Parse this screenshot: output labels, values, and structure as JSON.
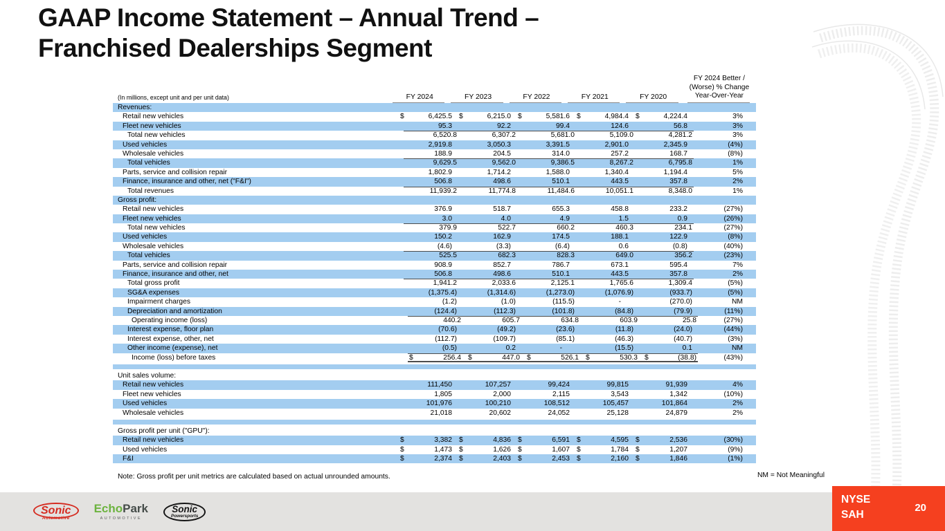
{
  "slide": {
    "title_line1": "GAAP Income Statement – Annual Trend –",
    "title_line2": "Franchised Dealerships Segment",
    "note": "Note: Gross profit per unit metrics are calculated based on actual unrounded amounts.",
    "nm_note": "NM = Not Meaningful",
    "ticker_line1": "NYSE",
    "ticker_line2": "SAH",
    "page_number": "20"
  },
  "colors": {
    "row_blue": "#a3cdf0",
    "ticker_red": "#f5401f",
    "sonic_red": "#d52b20",
    "echopark_green": "#6cb33f",
    "footer_gray": "#e3e2e0"
  },
  "table": {
    "units_note": "(In millions, except unit and per unit data)",
    "columns": [
      "FY 2024",
      "FY 2023",
      "FY 2022",
      "FY 2021",
      "FY 2020"
    ],
    "change_header": [
      "FY 2024 Better /",
      "(Worse) % Change",
      "Year-Over-Year"
    ],
    "rows": [
      {
        "type": "section",
        "shade": "b",
        "ind": 0,
        "label": "Revenues:"
      },
      {
        "type": "data",
        "shade": "w",
        "ind": 1,
        "label": "Retail new vehicles",
        "dollar": true,
        "v": [
          "6,425.5",
          "6,215.0",
          "5,581.6",
          "4,984.4",
          "4,224.4"
        ],
        "c": "3%"
      },
      {
        "type": "data",
        "shade": "b",
        "ind": 1,
        "label": "Fleet new vehicles",
        "v": [
          "95.3",
          "92.2",
          "99.4",
          "124.6",
          "56.8"
        ],
        "c": "3%"
      },
      {
        "type": "data",
        "shade": "w",
        "ind": 2,
        "label": "Total new vehicles",
        "v": [
          "6,520.8",
          "6,307.2",
          "5,681.0",
          "5,109.0",
          "4,281.2"
        ],
        "c": "3%",
        "top": true
      },
      {
        "type": "data",
        "shade": "b",
        "ind": 1,
        "label": "Used vehicles",
        "v": [
          "2,919.8",
          "3,050.3",
          "3,391.5",
          "2,901.0",
          "2,345.9"
        ],
        "c": "(4%)"
      },
      {
        "type": "data",
        "shade": "w",
        "ind": 1,
        "label": "Wholesale vehicles",
        "v": [
          "188.9",
          "204.5",
          "314.0",
          "257.2",
          "168.7"
        ],
        "c": "(8%)"
      },
      {
        "type": "data",
        "shade": "b",
        "ind": 2,
        "label": "Total vehicles",
        "v": [
          "9,629.5",
          "9,562.0",
          "9,386.5",
          "8,267.2",
          "6,795.8"
        ],
        "c": "1%",
        "top": true
      },
      {
        "type": "data",
        "shade": "w",
        "ind": 1,
        "label": "Parts, service and collision repair",
        "v": [
          "1,802.9",
          "1,714.2",
          "1,588.0",
          "1,340.4",
          "1,194.4"
        ],
        "c": "5%"
      },
      {
        "type": "data",
        "shade": "b",
        "ind": 1,
        "label": "Finance, insurance and other, net (\"F&I\")",
        "v": [
          "506.8",
          "498.6",
          "510.1",
          "443.5",
          "357.8"
        ],
        "c": "2%"
      },
      {
        "type": "data",
        "shade": "w",
        "ind": 2,
        "label": "Total revenues",
        "v": [
          "11,939.2",
          "11,774.8",
          "11,484.6",
          "10,051.1",
          "8,348.0"
        ],
        "c": "1%",
        "top": true
      },
      {
        "type": "section",
        "shade": "b",
        "ind": 0,
        "label": "Gross profit:"
      },
      {
        "type": "data",
        "shade": "w",
        "ind": 1,
        "label": "Retail new vehicles",
        "v": [
          "376.9",
          "518.7",
          "655.3",
          "458.8",
          "233.2"
        ],
        "c": "(27%)"
      },
      {
        "type": "data",
        "shade": "b",
        "ind": 1,
        "label": "Fleet new vehicles",
        "v": [
          "3.0",
          "4.0",
          "4.9",
          "1.5",
          "0.9"
        ],
        "c": "(26%)"
      },
      {
        "type": "data",
        "shade": "w",
        "ind": 2,
        "label": "Total new vehicles",
        "v": [
          "379.9",
          "522.7",
          "660.2",
          "460.3",
          "234.1"
        ],
        "c": "(27%)",
        "top": true
      },
      {
        "type": "data",
        "shade": "b",
        "ind": 1,
        "label": "Used vehicles",
        "v": [
          "150.2",
          "162.9",
          "174.5",
          "188.1",
          "122.9"
        ],
        "c": "(8%)"
      },
      {
        "type": "data",
        "shade": "w",
        "ind": 1,
        "label": "Wholesale vehicles",
        "v": [
          "(4.6)",
          "(3.3)",
          "(6.4)",
          "0.6",
          "(0.8)"
        ],
        "c": "(40%)"
      },
      {
        "type": "data",
        "shade": "b",
        "ind": 2,
        "label": "Total vehicles",
        "v": [
          "525.5",
          "682.3",
          "828.3",
          "649.0",
          "356.2"
        ],
        "c": "(23%)",
        "top": true
      },
      {
        "type": "data",
        "shade": "w",
        "ind": 1,
        "label": "Parts, service and collision repair",
        "v": [
          "908.9",
          "852.7",
          "786.7",
          "673.1",
          "595.4"
        ],
        "c": "7%"
      },
      {
        "type": "data",
        "shade": "b",
        "ind": 1,
        "label": "Finance, insurance and other, net",
        "v": [
          "506.8",
          "498.6",
          "510.1",
          "443.5",
          "357.8"
        ],
        "c": "2%"
      },
      {
        "type": "data",
        "shade": "w",
        "ind": 2,
        "label": "Total gross profit",
        "v": [
          "1,941.2",
          "2,033.6",
          "2,125.1",
          "1,765.6",
          "1,309.4"
        ],
        "c": "(5%)",
        "top": true
      },
      {
        "type": "data",
        "shade": "b",
        "ind": 2,
        "label": "SG&A expenses",
        "v": [
          "(1,375.4)",
          "(1,314.6)",
          "(1,273.0)",
          "(1,076.9)",
          "(933.7)"
        ],
        "c": "(5%)"
      },
      {
        "type": "data",
        "shade": "w",
        "ind": 2,
        "label": "Impairment charges",
        "v": [
          "(1.2)",
          "(1.0)",
          "(115.5)",
          "-",
          "(270.0)"
        ],
        "c": "NM"
      },
      {
        "type": "data",
        "shade": "b",
        "ind": 2,
        "label": "Depreciation and amortization",
        "v": [
          "(124.4)",
          "(112.3)",
          "(101.8)",
          "(84.8)",
          "(79.9)"
        ],
        "c": "(11%)"
      },
      {
        "type": "data",
        "shade": "w",
        "ind": 3,
        "label": "Operating income (loss)",
        "v": [
          "440.2",
          "605.7",
          "634.8",
          "603.9",
          "25.8"
        ],
        "c": "(27%)",
        "top": true
      },
      {
        "type": "data",
        "shade": "b",
        "ind": 2,
        "label": "Interest expense, floor plan",
        "v": [
          "(70.6)",
          "(49.2)",
          "(23.6)",
          "(11.8)",
          "(24.0)"
        ],
        "c": "(44%)"
      },
      {
        "type": "data",
        "shade": "w",
        "ind": 2,
        "label": "Interest expense, other, net",
        "v": [
          "(112.7)",
          "(109.7)",
          "(85.1)",
          "(46.3)",
          "(40.7)"
        ],
        "c": "(3%)"
      },
      {
        "type": "data",
        "shade": "b",
        "ind": 2,
        "label": "Other income (expense), net",
        "v": [
          "(0.5)",
          "0.2",
          "-",
          "(15.5)",
          "0.1"
        ],
        "c": "NM"
      },
      {
        "type": "data",
        "shade": "w",
        "ind": 3,
        "label": "Income (loss) before taxes",
        "dollar": true,
        "v": [
          "256.4",
          "447.0",
          "526.1",
          "530.3",
          "(38.8)"
        ],
        "c": "(43%)",
        "top": true,
        "bot": true
      },
      {
        "type": "blank",
        "shade": "b"
      },
      {
        "type": "section",
        "shade": "w",
        "ind": 0,
        "label": "Unit sales volume:"
      },
      {
        "type": "data",
        "shade": "b",
        "ind": 1,
        "label": "Retail new vehicles",
        "v": [
          "111,450",
          "107,257",
          "99,424",
          "99,815",
          "91,939"
        ],
        "c": "4%"
      },
      {
        "type": "data",
        "shade": "w",
        "ind": 1,
        "label": "Fleet new vehicles",
        "v": [
          "1,805",
          "2,000",
          "2,115",
          "3,543",
          "1,342"
        ],
        "c": "(10%)"
      },
      {
        "type": "data",
        "shade": "b",
        "ind": 1,
        "label": "Used vehicles",
        "v": [
          "101,976",
          "100,210",
          "108,512",
          "105,457",
          "101,864"
        ],
        "c": "2%"
      },
      {
        "type": "data",
        "shade": "w",
        "ind": 1,
        "label": "Wholesale vehicles",
        "v": [
          "21,018",
          "20,602",
          "24,052",
          "25,128",
          "24,879"
        ],
        "c": "2%"
      },
      {
        "type": "blank",
        "shade": "b"
      },
      {
        "type": "section",
        "shade": "w",
        "ind": 0,
        "label": "Gross profit per unit (\"GPU\"):"
      },
      {
        "type": "data",
        "shade": "b",
        "ind": 1,
        "label": "Retail new vehicles",
        "dollar": true,
        "v": [
          "3,382",
          "4,836",
          "6,591",
          "4,595",
          "2,536"
        ],
        "c": "(30%)"
      },
      {
        "type": "data",
        "shade": "w",
        "ind": 1,
        "label": "Used vehicles",
        "dollar": true,
        "v": [
          "1,473",
          "1,626",
          "1,607",
          "1,784",
          "1,207"
        ],
        "c": "(9%)"
      },
      {
        "type": "data",
        "shade": "b",
        "ind": 1,
        "label": "F&I",
        "dollar": true,
        "v": [
          "2,374",
          "2,403",
          "2,453",
          "2,160",
          "1,846"
        ],
        "c": "(1%)"
      }
    ]
  },
  "logos": {
    "sonic_automotive": {
      "word": "Sonic",
      "sub": "Automotive"
    },
    "echopark": {
      "word1": "Echo",
      "word2": "Park",
      "sub": "AUTOMOTIVE"
    },
    "sonic_powersports": {
      "word": "Sonic",
      "sub": "Powersports"
    }
  }
}
